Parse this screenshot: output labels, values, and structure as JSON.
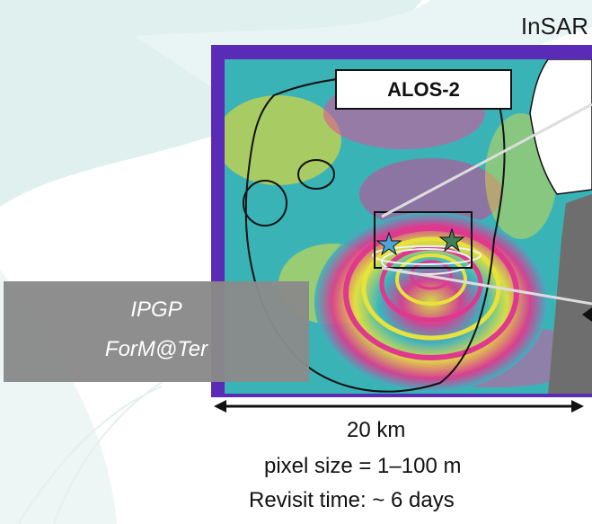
{
  "sensor_heading": "InSAR",
  "satellite_label": "ALOS-2",
  "credit": {
    "line1": "IPGP",
    "line2": "ForM@Ter"
  },
  "scale_bar": {
    "distance_label": "20 km"
  },
  "specs": {
    "pixel_size": "pixel size = 1–100 m",
    "revisit_time": "Revisit time: ~ 6 days"
  },
  "colors": {
    "frame": "#5a2bb7",
    "credit_box": "#8a8a8a",
    "background_leaf": "#dff0ef"
  }
}
